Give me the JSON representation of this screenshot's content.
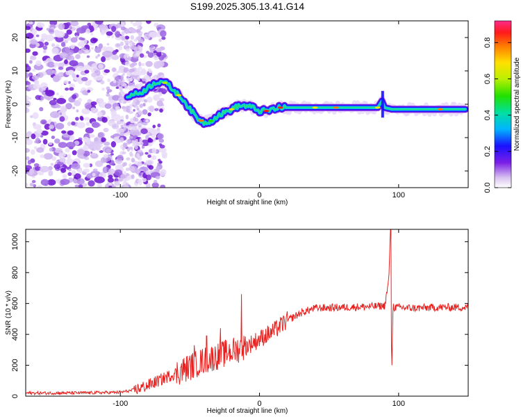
{
  "page_title": "S199.2025.305.13.41.G14",
  "chart_data": [
    {
      "type": "heatmap",
      "title": "S199.2025.305.13.41.G14",
      "xlabel": "Height of straight line (km)",
      "ylabel": "Frequency (Hz)",
      "xlim": [
        -168,
        150
      ],
      "ylim": [
        -25,
        25
      ],
      "xticks": [
        -100,
        0,
        100
      ],
      "xtick_labels": [
        "-100",
        "0",
        "100"
      ],
      "yticks": [
        -20,
        -10,
        0,
        10,
        20
      ],
      "ytick_labels": [
        "-20",
        "-10",
        "0",
        "10",
        "20"
      ],
      "colorbar": {
        "label": "Normalized spectral amplitude",
        "range": [
          0,
          0.92
        ],
        "ticks": [
          0.0,
          0.2,
          0.4,
          0.6,
          0.8
        ],
        "tick_labels": [
          "0.0",
          "0.2",
          "0.4",
          "0.6",
          "0.8"
        ]
      },
      "ridge": {
        "x": [
          -95,
          -90,
          -85,
          -80,
          -75,
          -70,
          -65,
          -60,
          -55,
          -50,
          -45,
          -40,
          -35,
          -30,
          -25,
          -20,
          -15,
          -10,
          -5,
          0,
          5,
          10,
          15,
          20,
          30,
          50,
          70,
          85,
          88,
          90,
          95,
          110,
          130,
          148
        ],
        "freq": [
          2.5,
          3,
          3.5,
          5,
          6.5,
          7,
          5.5,
          3.5,
          1.5,
          -1.5,
          -4,
          -5.5,
          -5,
          -3.5,
          -2.5,
          -1.5,
          -0.5,
          -0.5,
          -1,
          -2,
          -2,
          -1.5,
          -1,
          -1,
          -1,
          -1,
          -1,
          -1,
          1,
          -1,
          -1.5,
          -1.5,
          -1.5,
          -1.5
        ]
      }
    },
    {
      "type": "line",
      "xlabel": "Height of straight line (km)",
      "ylabel": "SNR (10 * v/v)",
      "xlim": [
        -168,
        150
      ],
      "ylim": [
        0,
        1080
      ],
      "xticks": [
        -100,
        0,
        100
      ],
      "xtick_labels": [
        "-100",
        "0",
        "100"
      ],
      "yticks": [
        0,
        200,
        400,
        600,
        800,
        1000
      ],
      "ytick_labels": [
        "0",
        "200",
        "400",
        "600",
        "800",
        "1000"
      ],
      "series": [
        {
          "name": "SNR",
          "color": "#e8211f",
          "x": [
            -168,
            -150,
            -120,
            -100,
            -90,
            -80,
            -70,
            -60,
            -50,
            -40,
            -30,
            -20,
            -10,
            0,
            10,
            20,
            30,
            40,
            60,
            80,
            90,
            93,
            94,
            95,
            96,
            98,
            110,
            130,
            150
          ],
          "values": [
            20,
            20,
            22,
            25,
            40,
            70,
            110,
            150,
            190,
            230,
            260,
            290,
            320,
            370,
            420,
            490,
            540,
            570,
            575,
            580,
            585,
            750,
            1080,
            200,
            580,
            575,
            570,
            575,
            575
          ]
        }
      ],
      "spikes": [
        {
          "x": -47,
          "value": 330
        },
        {
          "x": -38,
          "value": 390
        },
        {
          "x": -28,
          "value": 440
        },
        {
          "x": -13,
          "value": 660
        },
        {
          "x": -22,
          "value": 280
        }
      ]
    }
  ]
}
